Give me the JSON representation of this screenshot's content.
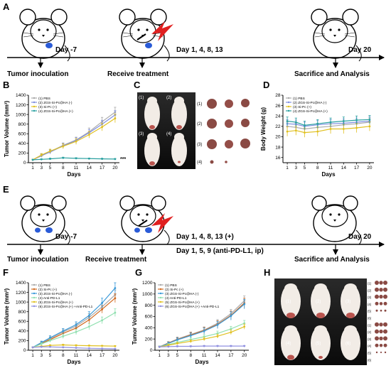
{
  "panels": {
    "A": "A",
    "B": "B",
    "C": "C",
    "D": "D",
    "E": "E",
    "F": "F",
    "G": "G",
    "H": "H"
  },
  "timeline1": {
    "day_minus7": "Day -7",
    "day_treat": "Day 1, 4, 8, 13",
    "day_end": "Day 20",
    "label1": "Tumor inoculation",
    "label2": "Receive treatment",
    "label3": "Sacrifice and Analysis"
  },
  "timeline2": {
    "day_minus7": "Day -7",
    "day_treat1": "Day 1, 4, 8, 13 (+)",
    "day_treat2": "Day 1, 5, 9 (anti-PD-L1, ip)",
    "day_end": "Day 20",
    "label1": "Tumor inoculation",
    "label2": "Receive treatment",
    "label3": "Sacrifice and Analysis"
  },
  "photoC": {
    "mouse_labels": [
      "(1)",
      "(2)",
      "(3)",
      "(4)"
    ],
    "tumor_labels": [
      "(1)",
      "(2)",
      "(3)",
      "(4)"
    ]
  },
  "photoH": {
    "mouse_labels": [
      "(1)",
      "(2)",
      "(3)",
      "(4)",
      "(5)",
      "(6)"
    ],
    "tumor_labels": [
      "(1)",
      "(2)",
      "(3)",
      "(4)",
      "(5)",
      "(6)",
      "(1)",
      "(2)",
      "(3)",
      "(4)",
      "(5)",
      "(6)"
    ]
  },
  "chart_data": [
    {
      "panel": "B",
      "type": "line",
      "xlabel": "Days",
      "ylabel": "Tumor Volume (mm³)",
      "x": [
        1,
        3,
        5,
        8,
        11,
        14,
        17,
        20
      ],
      "xlim": [
        0,
        21
      ],
      "ylim": [
        0,
        1400
      ],
      "yticks": [
        0,
        200,
        400,
        600,
        800,
        1000,
        1200,
        1400
      ],
      "annotation": "***",
      "legend_position": "top-left",
      "series": [
        {
          "name": "(1) PBS",
          "color": "#a9a9a9",
          "values": [
            60,
            140,
            230,
            360,
            470,
            640,
            850,
            1050
          ],
          "errors": [
            15,
            30,
            40,
            50,
            60,
            80,
            90,
            100
          ]
        },
        {
          "name": "(2) ZGS-Si-Pc@HA (-)",
          "color": "#7f8fe0",
          "values": [
            60,
            150,
            220,
            350,
            460,
            620,
            800,
            990
          ],
          "errors": [
            15,
            30,
            40,
            50,
            60,
            70,
            80,
            90
          ]
        },
        {
          "name": "(3) Si-Pc (+)",
          "color": "#e0c020",
          "values": [
            60,
            160,
            240,
            340,
            440,
            580,
            740,
            920
          ],
          "errors": [
            15,
            30,
            40,
            50,
            60,
            70,
            80,
            90
          ]
        },
        {
          "name": "(4) ZGS-Si-Pc@HA (+)",
          "color": "#2aa0a0",
          "values": [
            60,
            70,
            80,
            100,
            90,
            85,
            80,
            75
          ],
          "errors": [
            10,
            12,
            15,
            15,
            15,
            12,
            12,
            12
          ]
        }
      ]
    },
    {
      "panel": "D",
      "type": "line",
      "xlabel": "Days",
      "ylabel": "Body Weight (g)",
      "x": [
        1,
        3,
        5,
        8,
        11,
        14,
        17,
        20
      ],
      "xlim": [
        0,
        21
      ],
      "ylim": [
        15,
        28
      ],
      "yticks": [
        16,
        18,
        20,
        22,
        24,
        26,
        28
      ],
      "legend_position": "top-left",
      "series": [
        {
          "name": "(1) PBS",
          "color": "#a9a9a9",
          "values": [
            22.0,
            21.8,
            21.5,
            21.8,
            22.0,
            22.3,
            22.5,
            22.8
          ],
          "errors": [
            0.8,
            0.8,
            0.8,
            0.8,
            0.8,
            0.8,
            0.8,
            0.8
          ]
        },
        {
          "name": "(2) ZGS-Si-Pc@HA (-)",
          "color": "#7f8fe0",
          "values": [
            22.5,
            22.4,
            22.0,
            22.3,
            22.5,
            22.6,
            22.8,
            23.0
          ],
          "errors": [
            0.8,
            0.8,
            0.8,
            0.8,
            0.8,
            0.8,
            0.8,
            0.8
          ]
        },
        {
          "name": "(3) Si-Pc (+)",
          "color": "#e0c020",
          "values": [
            21.0,
            21.2,
            20.8,
            21.0,
            21.5,
            21.5,
            21.7,
            22.0
          ],
          "errors": [
            0.9,
            0.9,
            0.9,
            0.9,
            0.9,
            0.9,
            0.9,
            0.9
          ]
        },
        {
          "name": "(4) ZGS-Si-Pc@HA (+)",
          "color": "#2aa0a0",
          "values": [
            23.0,
            22.8,
            22.2,
            22.5,
            22.8,
            23.0,
            23.2,
            23.3
          ],
          "errors": [
            0.8,
            0.8,
            0.8,
            0.8,
            0.8,
            0.8,
            0.8,
            0.8
          ]
        }
      ]
    },
    {
      "panel": "F",
      "type": "line",
      "xlabel": "Days",
      "ylabel": "Tumor Volume (mm³)",
      "x": [
        1,
        3,
        5,
        8,
        11,
        14,
        17,
        20
      ],
      "xlim": [
        0,
        21
      ],
      "ylim": [
        0,
        1400
      ],
      "yticks": [
        0,
        200,
        400,
        600,
        800,
        1000,
        1200,
        1400
      ],
      "legend_position": "top-left",
      "series": [
        {
          "name": "(1) PBS",
          "color": "#a9a9a9",
          "values": [
            60,
            150,
            240,
            380,
            500,
            680,
            900,
            1150
          ],
          "errors": [
            15,
            30,
            40,
            50,
            60,
            80,
            90,
            100
          ]
        },
        {
          "name": "(2) Si-Pc (+)",
          "color": "#d2691e",
          "values": [
            60,
            140,
            220,
            350,
            460,
            630,
            850,
            1080
          ],
          "errors": [
            15,
            30,
            40,
            50,
            60,
            70,
            80,
            90
          ]
        },
        {
          "name": "(3) ZGS-Si-Pc@HA (-)",
          "color": "#3a9ad9",
          "values": [
            60,
            160,
            260,
            400,
            530,
            720,
            980,
            1290
          ],
          "errors": [
            15,
            30,
            40,
            50,
            60,
            80,
            100,
            110
          ]
        },
        {
          "name": "(4) Anti-PD-L1",
          "color": "#90e0b0",
          "values": [
            60,
            130,
            200,
            290,
            380,
            490,
            620,
            780
          ],
          "errors": [
            15,
            25,
            35,
            45,
            55,
            65,
            70,
            80
          ]
        },
        {
          "name": "(5) ZGS-Si-Pc@HA (+)",
          "color": "#e0c020",
          "values": [
            60,
            80,
            100,
            110,
            100,
            95,
            90,
            85
          ],
          "errors": [
            10,
            12,
            15,
            15,
            15,
            12,
            12,
            12
          ]
        },
        {
          "name": "(6) ZGS-Si-Pc@HA (+) +Anti-PD-L1",
          "color": "#9090e0",
          "values": [
            60,
            70,
            70,
            60,
            50,
            40,
            35,
            30
          ],
          "errors": [
            10,
            10,
            10,
            10,
            10,
            8,
            8,
            8
          ]
        }
      ]
    },
    {
      "panel": "G",
      "type": "line",
      "xlabel": "Days",
      "ylabel": "Tumor Volume (mm³)",
      "x": [
        1,
        3,
        5,
        8,
        11,
        14,
        17,
        20
      ],
      "xlim": [
        0,
        21
      ],
      "ylim": [
        0,
        1200
      ],
      "yticks": [
        0,
        200,
        400,
        600,
        800,
        1000,
        1200
      ],
      "legend_position": "top-left",
      "series": [
        {
          "name": "(1) PBS",
          "color": "#a9a9a9",
          "values": [
            60,
            130,
            200,
            280,
            360,
            480,
            650,
            880
          ],
          "errors": [
            15,
            25,
            35,
            45,
            55,
            65,
            75,
            85
          ]
        },
        {
          "name": "(2) Si-Pc (+)",
          "color": "#d2691e",
          "values": [
            60,
            125,
            190,
            270,
            350,
            460,
            620,
            840
          ],
          "errors": [
            15,
            25,
            35,
            45,
            55,
            65,
            75,
            85
          ]
        },
        {
          "name": "(3) ZGS-Si-Pc@HA (-)",
          "color": "#3a9ad9",
          "values": [
            60,
            120,
            185,
            260,
            340,
            450,
            610,
            820
          ],
          "errors": [
            15,
            25,
            35,
            45,
            55,
            65,
            75,
            85
          ]
        },
        {
          "name": "(4) Anti-PD-L1",
          "color": "#90e0b0",
          "values": [
            60,
            100,
            140,
            190,
            240,
            300,
            380,
            480
          ],
          "errors": [
            15,
            20,
            25,
            30,
            35,
            40,
            45,
            50
          ]
        },
        {
          "name": "(5) ZGS-Si-Pc@HA (+)",
          "color": "#e0c020",
          "values": [
            60,
            90,
            120,
            160,
            200,
            250,
            320,
            420
          ],
          "errors": [
            10,
            15,
            20,
            25,
            30,
            35,
            40,
            45
          ]
        },
        {
          "name": "(6) ZGS-Si-Pc@HA (+) +Anti-PD-L1",
          "color": "#9090e0",
          "values": [
            60,
            65,
            70,
            70,
            75,
            75,
            75,
            75
          ],
          "errors": [
            10,
            10,
            10,
            10,
            10,
            10,
            10,
            10
          ]
        }
      ]
    }
  ]
}
